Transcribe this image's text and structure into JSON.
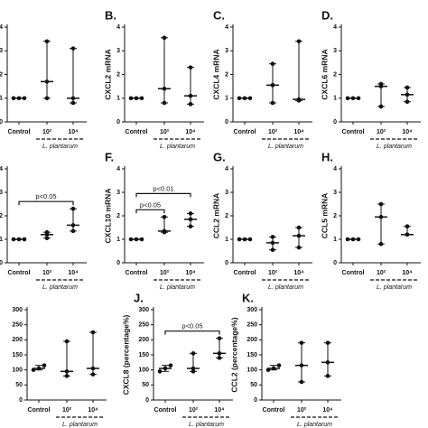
{
  "chart_data": [
    {
      "type": "median-range",
      "categories": [
        "Control",
        "10²",
        "10⁴"
      ],
      "group_label": "L. plantarum",
      "points": [
        [
          1,
          1,
          1
        ],
        [
          3.4,
          1.7,
          1.0
        ],
        [
          3.1,
          1.0,
          0.8
        ]
      ],
      "medians": [
        1,
        1.7,
        1.0
      ],
      "ylim": [
        0,
        4
      ],
      "yticks": [
        0,
        1,
        2,
        3,
        4
      ]
    },
    {
      "type": "median-range",
      "letter": "B.",
      "ylabel": "CXCL2 mRNA",
      "categories": [
        "Control",
        "10²",
        "10⁴"
      ],
      "group_label": "L. plantarum",
      "points": [
        [
          1,
          1,
          1
        ],
        [
          3.55,
          1.4,
          0.8
        ],
        [
          2.3,
          1.1,
          0.75
        ]
      ],
      "medians": [
        1,
        1.4,
        1.1
      ],
      "ylim": [
        0,
        4
      ],
      "yticks": [
        0,
        1,
        2,
        3,
        4
      ]
    },
    {
      "type": "median-range",
      "letter": "C.",
      "ylabel": "CXCL4 mRNA",
      "categories": [
        "Control",
        "10²",
        "10⁴"
      ],
      "group_label": "L. plantarum",
      "points": [
        [
          1,
          1,
          1
        ],
        [
          2.45,
          1.55,
          0.8
        ],
        [
          3.4,
          0.95,
          0.9
        ]
      ],
      "medians": [
        1,
        1.55,
        0.95
      ],
      "ylim": [
        0,
        4
      ],
      "yticks": [
        0,
        1,
        2,
        3,
        4
      ]
    },
    {
      "type": "median-range",
      "letter": "D.",
      "ylabel": "CXCL6 mRNA",
      "categories": [
        "Control",
        "10²",
        "10⁴"
      ],
      "group_label": "L. plantarum",
      "points": [
        [
          1,
          1,
          1
        ],
        [
          1.6,
          1.5,
          0.65
        ],
        [
          1.45,
          1.15,
          0.85
        ]
      ],
      "medians": [
        1,
        1.5,
        1.15
      ],
      "ylim": [
        0,
        4
      ],
      "yticks": [
        0,
        1,
        2,
        3,
        4
      ]
    },
    {
      "type": "median-range",
      "categories": [
        "Control",
        "10²",
        "10⁴"
      ],
      "group_label": "L. plantarum",
      "points": [
        [
          1,
          1,
          1
        ],
        [
          1.3,
          1.2,
          1.05
        ],
        [
          2.3,
          1.6,
          1.35
        ]
      ],
      "medians": [
        1,
        1.2,
        1.6
      ],
      "ylim": [
        0,
        4
      ],
      "yticks": [
        0,
        1,
        2,
        3,
        4
      ],
      "annotations": [
        {
          "text": "p<0.05",
          "from": 0,
          "to": 2
        }
      ]
    },
    {
      "type": "median-range",
      "letter": "F.",
      "ylabel": "CXCL10 mRNA",
      "categories": [
        "Control",
        "10²",
        "10⁴"
      ],
      "group_label": "L. plantarum",
      "points": [
        [
          1,
          1,
          1
        ],
        [
          1.95,
          1.35,
          1.3
        ],
        [
          2.1,
          1.85,
          1.55
        ]
      ],
      "medians": [
        1,
        1.35,
        1.85
      ],
      "ylim": [
        0,
        4
      ],
      "yticks": [
        0,
        1,
        2,
        3,
        4
      ],
      "annotations": [
        {
          "text": "p<0.05",
          "from": 0,
          "to": 1
        },
        {
          "text": "p<0.01",
          "from": 0,
          "to": 2
        }
      ]
    },
    {
      "type": "median-range",
      "letter": "G.",
      "ylabel": "CCL2 mRNA",
      "categories": [
        "Control",
        "10²",
        "10⁴"
      ],
      "group_label": "L. plantarum",
      "points": [
        [
          1,
          1,
          1
        ],
        [
          1.1,
          0.85,
          0.55
        ],
        [
          1.5,
          1.15,
          0.65
        ]
      ],
      "medians": [
        1,
        0.85,
        1.15
      ],
      "ylim": [
        0,
        4
      ],
      "yticks": [
        0,
        1,
        2,
        3,
        4
      ]
    },
    {
      "type": "median-range",
      "letter": "H.",
      "ylabel": "CCL5 mRNA",
      "categories": [
        "Control",
        "10²",
        "10⁴"
      ],
      "group_label": "L. plantarum",
      "points": [
        [
          1,
          1,
          1
        ],
        [
          2.5,
          1.95,
          0.8
        ],
        [
          1.55,
          1.2,
          1.2
        ]
      ],
      "medians": [
        1,
        1.95,
        1.2
      ],
      "ylim": [
        0,
        4
      ],
      "yticks": [
        0,
        1,
        2,
        3,
        4
      ]
    },
    {
      "type": "median-range",
      "categories": [
        "Control",
        "10²",
        "10⁴"
      ],
      "group_label": "L. plantarum",
      "points": [
        [
          100,
          105,
          115
        ],
        [
          195,
          95,
          80
        ],
        [
          225,
          105,
          85
        ]
      ],
      "medians": [
        105,
        95,
        105
      ],
      "ylim": [
        0,
        300
      ],
      "yticks": [
        0,
        50,
        100,
        150,
        200,
        250,
        300
      ]
    },
    {
      "type": "median-range",
      "letter": "J.",
      "ylabel": "CXCL8 (percentage%)",
      "categories": [
        "Control",
        "10²",
        "10⁴"
      ],
      "group_label": "L. plantarum",
      "points": [
        [
          95,
          105,
          115
        ],
        [
          155,
          105,
          95
        ],
        [
          205,
          155,
          140
        ]
      ],
      "medians": [
        105,
        105,
        155
      ],
      "ylim": [
        0,
        300
      ],
      "yticks": [
        0,
        50,
        100,
        150,
        200,
        250,
        300
      ],
      "annotations": [
        {
          "text": "p<0.05",
          "from": 0,
          "to": 2
        }
      ]
    },
    {
      "type": "median-range",
      "letter": "K.",
      "ylabel": "CCL2 (percentage%)",
      "categories": [
        "Control",
        "10²",
        "10⁴"
      ],
      "group_label": "L. plantarum",
      "points": [
        [
          100,
          105,
          115
        ],
        [
          190,
          115,
          60
        ],
        [
          190,
          125,
          80
        ]
      ],
      "medians": [
        105,
        115,
        125
      ],
      "ylim": [
        0,
        300
      ],
      "yticks": [
        0,
        50,
        100,
        150,
        200,
        250,
        300
      ]
    }
  ]
}
